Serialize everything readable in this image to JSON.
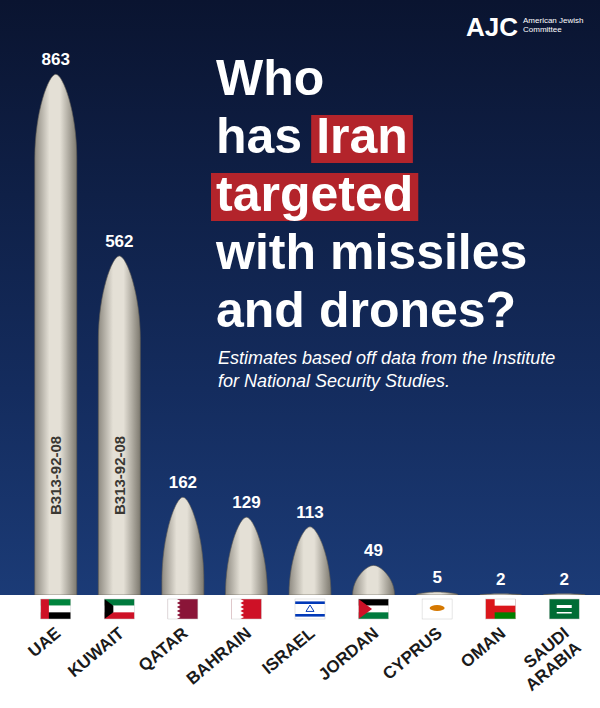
{
  "chart_data": {
    "type": "bar",
    "title": "Who has Iran targeted with missiles and drones?",
    "subtitle": "Estimates based off data from the Institute for National Security Studies.",
    "logo": "AJC",
    "logo_text": "American Jewish Committee",
    "missile_marking": "B313-92-08",
    "categories": [
      "UAE",
      "KUWAIT",
      "QATAR",
      "BAHRAIN",
      "ISRAEL",
      "JORDAN",
      "CYPRUS",
      "OMAN",
      "SAUDI ARABIA"
    ],
    "values": [
      863,
      562,
      162,
      129,
      113,
      49,
      5,
      2,
      2
    ],
    "color": "#e4e0d6",
    "ylim": [
      0,
      900
    ],
    "data_labels": true,
    "tick_labels": "x",
    "grid": false
  }
}
